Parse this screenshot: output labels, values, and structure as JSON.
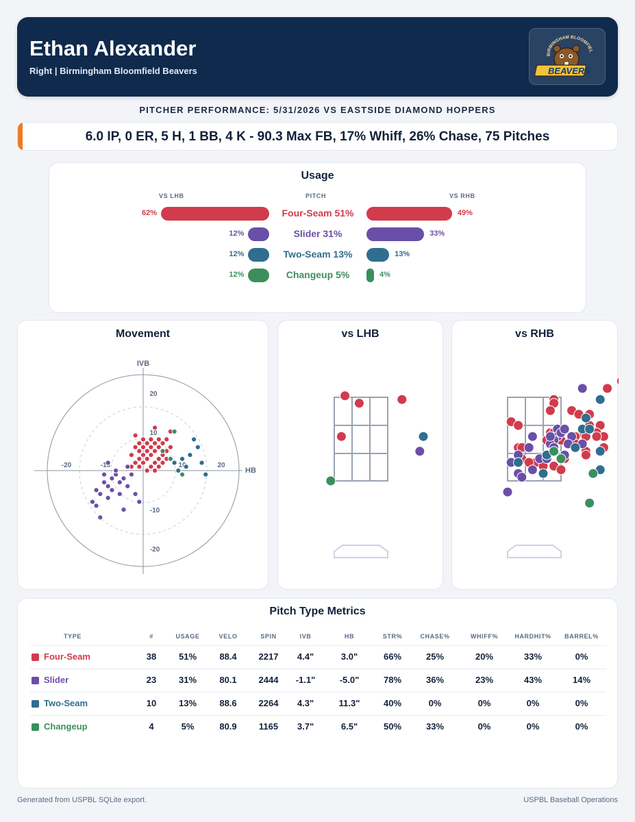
{
  "header": {
    "player_name": "Ethan Alexander",
    "subtitle": "Right | Birmingham Bloomfield Beavers",
    "logo_text": "BIRMINGHAM BLOOMFIELD",
    "logo_wordmark": "BEAVERS"
  },
  "performance_title": "PITCHER PERFORMANCE: 5/31/2026 VS EASTSIDE DIAMOND HOPPERS",
  "stat_line": "6.0 IP, 0 ER, 5 H, 1 BB, 4 K - 90.3 Max FB, 17% Whiff, 26% Chase, 75 Pitches",
  "colors": {
    "Four-Seam": "#d13b4c",
    "Slider": "#6a4fa8",
    "Two-Seam": "#2f6e8f",
    "Changeup": "#3b8f5d",
    "header_bg": "#0f2a4d",
    "accent": "#f07a22"
  },
  "usage": {
    "title": "Usage",
    "col_lhb": "VS LHB",
    "col_pitch": "PITCH",
    "col_rhb": "VS RHB",
    "rows": [
      {
        "pitch": "Four-Seam",
        "label": "Four-Seam 51%",
        "overall": 51,
        "lhb": 62,
        "rhb": 49,
        "lhb_text": "62%",
        "rhb_text": "49%"
      },
      {
        "pitch": "Slider",
        "label": "Slider 31%",
        "overall": 31,
        "lhb": 12,
        "rhb": 33,
        "lhb_text": "12%",
        "rhb_text": "33%"
      },
      {
        "pitch": "Two-Seam",
        "label": "Two-Seam 13%",
        "overall": 13,
        "lhb": 12,
        "rhb": 13,
        "lhb_text": "12%",
        "rhb_text": "13%"
      },
      {
        "pitch": "Changeup",
        "label": "Changeup 5%",
        "overall": 5,
        "lhb": 12,
        "rhb": 4,
        "lhb_text": "12%",
        "rhb_text": "4%"
      }
    ]
  },
  "movement": {
    "title": "Movement",
    "xlabel": "HB",
    "ylabel": "IVB",
    "ticks": [
      "-20",
      "-10",
      "10",
      "20"
    ]
  },
  "locations": {
    "lhb_title": "vs LHB",
    "rhb_title": "vs RHB"
  },
  "chart_data": [
    {
      "type": "scatter",
      "title": "Movement",
      "xlabel": "HB",
      "ylabel": "IVB",
      "xlim": [
        -25,
        25
      ],
      "ylim": [
        -25,
        25
      ],
      "series": [
        {
          "name": "Four-Seam",
          "points": [
            [
              3,
              11
            ],
            [
              7,
              10
            ],
            [
              -2,
              9
            ],
            [
              0,
              8
            ],
            [
              2,
              8
            ],
            [
              4,
              8
            ],
            [
              6,
              8
            ],
            [
              -1,
              7
            ],
            [
              1,
              7
            ],
            [
              3,
              7
            ],
            [
              5,
              7
            ],
            [
              7,
              6
            ],
            [
              -2,
              6
            ],
            [
              0,
              6
            ],
            [
              2,
              6
            ],
            [
              4,
              6
            ],
            [
              6,
              5
            ],
            [
              -1,
              5
            ],
            [
              1,
              5
            ],
            [
              3,
              5
            ],
            [
              5,
              4
            ],
            [
              -3,
              4
            ],
            [
              0,
              4
            ],
            [
              2,
              4
            ],
            [
              4,
              3
            ],
            [
              6,
              3
            ],
            [
              -1,
              3
            ],
            [
              1,
              3
            ],
            [
              3,
              2
            ],
            [
              -2,
              2
            ],
            [
              0,
              2
            ],
            [
              5,
              2
            ],
            [
              2,
              1
            ],
            [
              -1,
              1
            ],
            [
              1,
              0
            ],
            [
              4,
              1
            ],
            [
              -3,
              1
            ],
            [
              3,
              0
            ]
          ]
        },
        {
          "name": "Slider",
          "points": [
            [
              -10,
              -3
            ],
            [
              -12,
              -5
            ],
            [
              -9,
              -4
            ],
            [
              -8,
              -2
            ],
            [
              -11,
              -6
            ],
            [
              -7,
              -1
            ],
            [
              -9,
              -7
            ],
            [
              -6,
              -3
            ],
            [
              -4,
              1
            ],
            [
              -7,
              0
            ],
            [
              -5,
              -2
            ],
            [
              -3,
              -1
            ],
            [
              -13,
              -8
            ],
            [
              -8,
              -5
            ],
            [
              -6,
              -6
            ],
            [
              -10,
              -1
            ],
            [
              -4,
              -4
            ],
            [
              -9,
              2
            ],
            [
              -12,
              -9
            ],
            [
              -11,
              -12
            ],
            [
              -5,
              -10
            ],
            [
              -1,
              -8
            ],
            [
              -2,
              -6
            ]
          ]
        },
        {
          "name": "Two-Seam",
          "points": [
            [
              13,
              8
            ],
            [
              14,
              6
            ],
            [
              12,
              4
            ],
            [
              15,
              2
            ],
            [
              10,
              3
            ],
            [
              11,
              1
            ],
            [
              8,
              2
            ],
            [
              9,
              0
            ],
            [
              10,
              -1
            ],
            [
              16,
              -1
            ]
          ]
        },
        {
          "name": "Changeup",
          "points": [
            [
              8,
              10
            ],
            [
              5,
              5
            ],
            [
              10,
              -1
            ],
            [
              7,
              3
            ]
          ]
        }
      ]
    },
    {
      "type": "scatter",
      "title": "vs LHB",
      "series": [
        {
          "name": "Four-Seam",
          "points": [
            [
              0.3,
              3.9
            ],
            [
              0.7,
              3.7
            ],
            [
              1.9,
              3.8
            ],
            [
              0.2,
              2.8
            ]
          ]
        },
        {
          "name": "Slider",
          "points": [
            [
              2.4,
              2.4
            ]
          ]
        },
        {
          "name": "Two-Seam",
          "points": [
            [
              2.5,
              2.8
            ]
          ]
        },
        {
          "name": "Changeup",
          "points": [
            [
              -0.1,
              1.6
            ]
          ]
        }
      ]
    },
    {
      "type": "scatter",
      "title": "vs RHB",
      "series": [
        {
          "name": "Four-Seam",
          "points": [
            [
              3.2,
              4.3
            ],
            [
              2.8,
              4.1
            ],
            [
              1.3,
              3.8
            ],
            [
              1.3,
              3.7
            ],
            [
              1.2,
              3.5
            ],
            [
              1.8,
              3.5
            ],
            [
              2.0,
              3.4
            ],
            [
              2.3,
              3.4
            ],
            [
              0.1,
              3.2
            ],
            [
              0.3,
              3.1
            ],
            [
              2.3,
              3.1
            ],
            [
              2.1,
              3.0
            ],
            [
              2.6,
              3.1
            ],
            [
              2.1,
              2.9
            ],
            [
              2.2,
              2.8
            ],
            [
              1.2,
              2.9
            ],
            [
              1.3,
              2.9
            ],
            [
              1.5,
              2.7
            ],
            [
              2.0,
              2.6
            ],
            [
              2.5,
              2.9
            ],
            [
              1.9,
              2.8
            ],
            [
              2.7,
              2.8
            ],
            [
              2.5,
              2.8
            ],
            [
              1.1,
              2.7
            ],
            [
              1.9,
              2.6
            ],
            [
              2.7,
              2.5
            ],
            [
              2.2,
              2.4
            ],
            [
              1.1,
              2.3
            ],
            [
              0.3,
              2.5
            ],
            [
              0.4,
              2.5
            ],
            [
              0.4,
              2.2
            ],
            [
              0.8,
              2.1
            ],
            [
              1.0,
              2.0
            ],
            [
              1.6,
              2.2
            ],
            [
              1.3,
              2.0
            ],
            [
              0.6,
              2.1
            ],
            [
              1.5,
              1.9
            ],
            [
              2.2,
              2.3
            ]
          ]
        },
        {
          "name": "Slider",
          "points": [
            [
              2.1,
              4.1
            ],
            [
              1.4,
              3.0
            ],
            [
              1.4,
              2.8
            ],
            [
              0.7,
              2.8
            ],
            [
              2.1,
              2.6
            ],
            [
              1.6,
              2.3
            ],
            [
              0.3,
              1.8
            ],
            [
              0.1,
              2.1
            ],
            [
              0.3,
              2.3
            ],
            [
              0.9,
              2.2
            ],
            [
              0.7,
              1.9
            ],
            [
              1.3,
              2.7
            ],
            [
              1.5,
              2.9
            ],
            [
              1.8,
              2.8
            ],
            [
              1.7,
              2.6
            ],
            [
              1.2,
              2.6
            ],
            [
              1.3,
              2.5
            ],
            [
              1.1,
              2.2
            ],
            [
              0.6,
              2.5
            ],
            [
              0.0,
              1.3
            ],
            [
              0.4,
              1.7
            ],
            [
              1.2,
              2.8
            ],
            [
              1.6,
              3.0
            ]
          ]
        },
        {
          "name": "Two-Seam",
          "points": [
            [
              2.6,
              3.8
            ],
            [
              2.2,
              3.3
            ],
            [
              2.1,
              3.0
            ],
            [
              2.3,
              3.0
            ],
            [
              0.3,
              2.1
            ],
            [
              1.9,
              2.5
            ],
            [
              2.6,
              2.4
            ],
            [
              2.6,
              1.9
            ],
            [
              1.0,
              1.8
            ],
            [
              1.1,
              2.3
            ]
          ]
        },
        {
          "name": "Changeup",
          "points": [
            [
              2.4,
              1.8
            ],
            [
              1.3,
              2.4
            ],
            [
              1.5,
              2.2
            ],
            [
              2.3,
              1.0
            ]
          ]
        }
      ]
    },
    {
      "type": "table",
      "title": "Pitch Type Metrics",
      "columns": [
        "TYPE",
        "#",
        "USAGE",
        "VELO",
        "SPIN",
        "IVB",
        "HB",
        "STR%",
        "CHASE%",
        "WHIFF%",
        "HARDHIT%",
        "BARREL%"
      ],
      "rows": [
        {
          "type": "Four-Seam",
          "cells": [
            "38",
            "51%",
            "88.4",
            "2217",
            "4.4\"",
            "3.0\"",
            "66%",
            "25%",
            "20%",
            "33%",
            "0%"
          ]
        },
        {
          "type": "Slider",
          "cells": [
            "23",
            "31%",
            "80.1",
            "2444",
            "-1.1\"",
            "-5.0\"",
            "78%",
            "36%",
            "23%",
            "43%",
            "14%"
          ]
        },
        {
          "type": "Two-Seam",
          "cells": [
            "10",
            "13%",
            "88.6",
            "2264",
            "4.3\"",
            "11.3\"",
            "40%",
            "0%",
            "0%",
            "0%",
            "0%"
          ]
        },
        {
          "type": "Changeup",
          "cells": [
            "4",
            "5%",
            "80.9",
            "1165",
            "3.7\"",
            "6.5\"",
            "50%",
            "33%",
            "0%",
            "0%",
            "0%"
          ]
        }
      ]
    }
  ],
  "footer": {
    "left": "Generated from USPBL SQLite export.",
    "right": "USPBL Baseball Operations"
  }
}
